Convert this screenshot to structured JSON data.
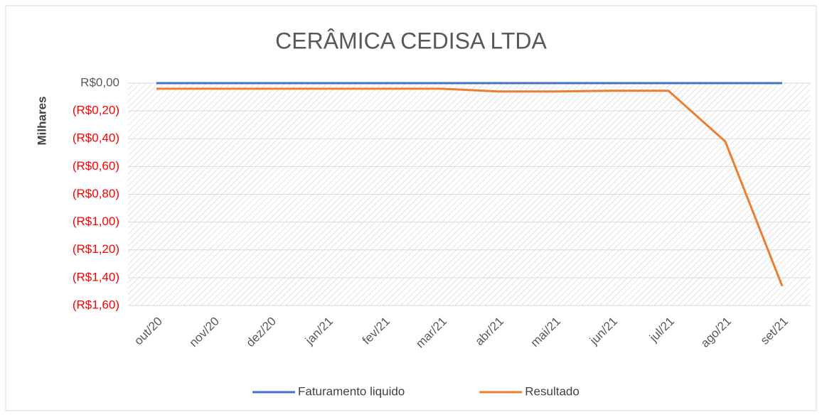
{
  "chart_data": {
    "type": "line",
    "title": "CERÂMICA CEDISA LTDA",
    "y_label": "Milhares",
    "categories": [
      "out/20",
      "nov/20",
      "dez/20",
      "jan/21",
      "fev/21",
      "mar/21",
      "abr/21",
      "mai/21",
      "jun/21",
      "jul/21",
      "ago/21",
      "set/21"
    ],
    "series": [
      {
        "name": "Faturamento liquido",
        "color": "#4472c4",
        "values": [
          0,
          0,
          0,
          0,
          0,
          0,
          0,
          0,
          0,
          0,
          0,
          0
        ]
      },
      {
        "name": "Resultado",
        "color": "#ed7d31",
        "values": [
          -0.04,
          -0.04,
          -0.04,
          -0.04,
          -0.04,
          -0.04,
          -0.06,
          -0.06,
          -0.055,
          -0.055,
          -0.42,
          -1.46
        ]
      }
    ],
    "ylim": [
      -1.6,
      0
    ],
    "yticks": [
      {
        "value": 0,
        "label": "R$0,00"
      },
      {
        "value": -0.2,
        "label": "(R$0,20)"
      },
      {
        "value": -0.4,
        "label": "(R$0,40)"
      },
      {
        "value": -0.6,
        "label": "(R$0,60)"
      },
      {
        "value": -0.8,
        "label": "(R$0,80)"
      },
      {
        "value": -1.0,
        "label": "(R$1,00)"
      },
      {
        "value": -1.2,
        "label": "(R$1,20)"
      },
      {
        "value": -1.4,
        "label": "(R$1,40)"
      },
      {
        "value": -1.6,
        "label": "(R$1,60)"
      }
    ],
    "negative_tick_color": "#ff0000",
    "grid": true,
    "legend": "bottom"
  }
}
